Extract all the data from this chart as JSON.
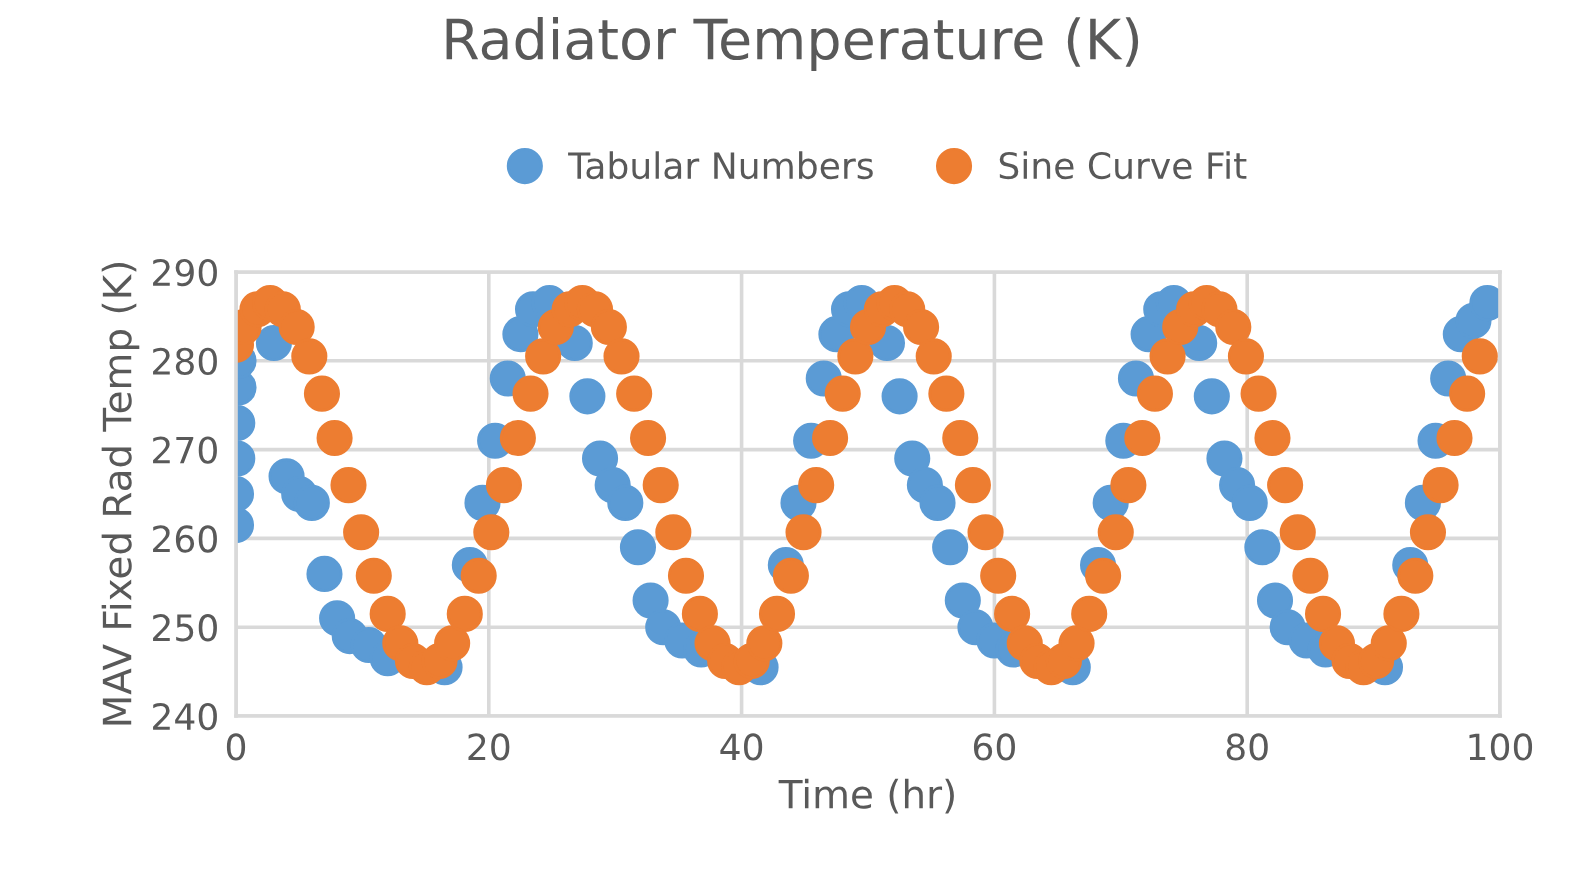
{
  "chart_data": {
    "type": "scatter",
    "title": "Radiator Temperature (K)",
    "xlabel": "Time (hr)",
    "ylabel": "MAV Fixed Rad Temp (K)",
    "xlim": [
      0,
      100
    ],
    "xticks": [
      0,
      20,
      40,
      60,
      80,
      100
    ],
    "ylim": [
      240,
      290
    ],
    "yticks": [
      240,
      250,
      260,
      270,
      280,
      290
    ],
    "grid": true,
    "legend": "top",
    "marker": "circle",
    "series": [
      {
        "name": "Tabular Numbers",
        "color": "#5b9bd5",
        "x": [
          0,
          0,
          0.1,
          0.1,
          0.2,
          0.2,
          0.3,
          1,
          2,
          3,
          4,
          5,
          6,
          7,
          8,
          9,
          10.5,
          12,
          14,
          16.5,
          17.5,
          18.5,
          19.5,
          20.5,
          21.5,
          22.5,
          23.5,
          24.8,
          26.3,
          26.8,
          27.8,
          28.8,
          29.8,
          30.8,
          31.8,
          32.8,
          33.8,
          35.3,
          36.8,
          38.8,
          40.3,
          41.5,
          42.5,
          43.5,
          44.5,
          45.5,
          46.5,
          47.5,
          48.5,
          49.5,
          51,
          51.5,
          52.5,
          53.5,
          54.5,
          55.5,
          56.5,
          57.5,
          58.5,
          60,
          61.5,
          63.5,
          65,
          66.2,
          67.2,
          68.2,
          69.2,
          70.2,
          71.2,
          72.2,
          73.2,
          74.2,
          75.7,
          76.2,
          77.2,
          78.2,
          79.2,
          80.2,
          81.2,
          82.2,
          83.2,
          84.7,
          86.2,
          88.2,
          89.7,
          90.9,
          91.9,
          92.9,
          93.9,
          94.9,
          95.9,
          96.9,
          97.9,
          99
        ],
        "values": [
          261.5,
          265,
          269,
          273,
          277,
          280,
          null,
          null,
          null,
          282,
          267,
          265,
          264,
          256,
          251,
          249,
          248,
          246.5,
          null,
          245.5,
          null,
          257,
          264,
          271,
          278,
          283,
          285.8,
          286.5,
          null,
          282,
          276,
          269,
          266,
          264,
          259,
          253,
          250,
          248.5,
          247.5,
          null,
          null,
          245.5,
          null,
          257,
          264,
          271,
          278,
          283,
          285.8,
          286.5,
          null,
          282,
          276,
          269,
          266,
          264,
          259,
          253,
          250,
          248.5,
          247.5,
          null,
          null,
          245.5,
          null,
          257,
          264,
          271,
          278,
          283,
          285.8,
          286.5,
          null,
          282,
          276,
          269,
          266,
          264,
          259,
          253,
          250,
          248.5,
          247.5,
          null,
          null,
          245.5,
          null,
          257,
          264,
          271,
          278,
          283,
          284.5,
          286.5
        ]
      },
      {
        "name": "Sine Curve Fit",
        "color": "#ed7d31",
        "x": [
          0,
          0.6,
          1.7,
          2.7,
          3.7,
          4.8,
          5.8,
          6.8,
          7.8,
          8.9,
          9.9,
          10.9,
          12.0,
          13.0,
          14.0,
          15.1,
          16.1,
          17.1,
          18.1,
          19.2,
          20.2,
          21.2,
          22.3,
          23.3,
          24.3,
          25.3,
          26.4,
          27.4,
          28.4,
          29.5,
          30.5,
          31.5,
          32.6,
          33.6,
          34.6,
          35.6,
          36.7,
          37.7,
          38.7,
          39.8,
          40.8,
          41.8,
          42.8,
          43.9,
          44.9,
          45.9,
          47.0,
          48.0,
          49.0,
          50.0,
          51.1,
          52.1,
          53.1,
          54.2,
          55.2,
          56.2,
          57.3,
          58.3,
          59.3,
          60.3,
          61.4,
          62.4,
          63.4,
          64.5,
          65.5,
          66.5,
          67.5,
          68.6,
          69.6,
          70.6,
          71.7,
          72.7,
          73.7,
          74.7,
          75.8,
          76.8,
          77.8,
          78.9,
          79.9,
          80.9,
          82.0,
          83.0,
          84.0,
          85.0,
          86.0,
          87.1,
          88.1,
          89.2,
          90.2,
          91.2,
          92.2,
          93.3,
          94.3,
          95.3,
          96.4,
          97.4,
          98.4
        ],
        "values": [
          281.8,
          283.8,
          285.8,
          286.5,
          285.8,
          283.8,
          280.5,
          276.3,
          271.3,
          266,
          260.7,
          255.8,
          251.5,
          248.2,
          246.2,
          245.5,
          246.2,
          248.2,
          251.5,
          255.8,
          260.7,
          266,
          271.3,
          276.3,
          280.5,
          283.8,
          285.8,
          286.5,
          285.8,
          283.8,
          280.5,
          276.3,
          271.3,
          266,
          260.7,
          255.8,
          251.5,
          248.2,
          246.2,
          245.5,
          246.2,
          248.2,
          251.5,
          255.8,
          260.7,
          266,
          271.3,
          276.3,
          280.5,
          283.8,
          285.8,
          286.5,
          285.8,
          283.8,
          280.5,
          276.3,
          271.3,
          266,
          260.7,
          255.8,
          251.5,
          248.2,
          246.2,
          245.5,
          246.2,
          248.2,
          251.5,
          255.8,
          260.7,
          266,
          271.3,
          276.3,
          280.5,
          283.8,
          285.8,
          286.5,
          285.8,
          283.8,
          280.5,
          276.3,
          271.3,
          266,
          260.7,
          255.8,
          251.5,
          248.2,
          246.2,
          245.5,
          246.2,
          248.2,
          251.5,
          255.8,
          260.7,
          266,
          271.3,
          276.3,
          280.5
        ]
      }
    ]
  }
}
